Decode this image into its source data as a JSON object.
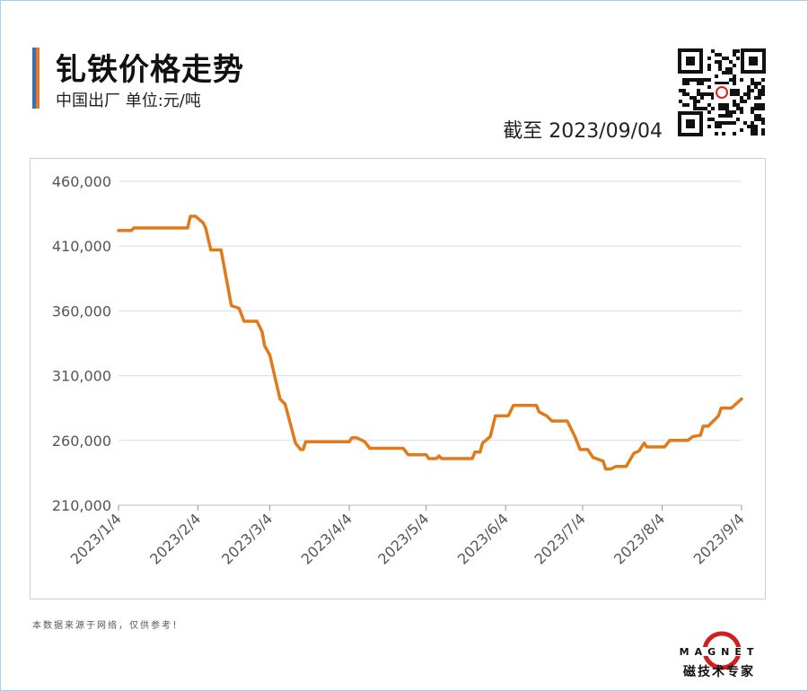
{
  "header": {
    "title": "钆铁价格走势",
    "subtitle": "中国出厂  单位:元/吨",
    "as_of": "截至 2023/09/04"
  },
  "footer": {
    "note": "本数据来源于网络，仅供参考！",
    "brand": "MAGNET",
    "brand_tagline": "磁技术专家"
  },
  "colors": {
    "line": "#e07a1a",
    "grid": "#dcdcdc",
    "accent_blue": "#3a6fb0",
    "accent_orange": "#e07a2e"
  },
  "chart_data": {
    "type": "line",
    "title": "钆铁价格走势",
    "ylabel": "",
    "xlabel": "",
    "ylim": [
      210000,
      460000
    ],
    "yticks": [
      210000,
      260000,
      310000,
      360000,
      410000,
      460000
    ],
    "ytick_labels": [
      "210,000",
      "260,000",
      "310,000",
      "360,000",
      "410,000",
      "460,000"
    ],
    "xlim": [
      "2023-01-04",
      "2023-09-04"
    ],
    "xticks": [
      "2023-01-04",
      "2023-02-04",
      "2023-03-04",
      "2023-04-04",
      "2023-05-04",
      "2023-06-04",
      "2023-07-04",
      "2023-08-04",
      "2023-09-04"
    ],
    "xtick_labels": [
      "2023/1/4",
      "2023/2/4",
      "2023/3/4",
      "2023/4/4",
      "2023/5/4",
      "2023/6/4",
      "2023/7/4",
      "2023/8/4",
      "2023/9/4"
    ],
    "grid": true,
    "legend": "none",
    "series": [
      {
        "points": [
          [
            "2023-01-04",
            422000
          ],
          [
            "2023-01-09",
            422000
          ],
          [
            "2023-01-10",
            424000
          ],
          [
            "2023-01-31",
            424000
          ],
          [
            "2023-02-01",
            433000
          ],
          [
            "2023-02-03",
            433000
          ],
          [
            "2023-02-06",
            428000
          ],
          [
            "2023-02-07",
            424000
          ],
          [
            "2023-02-09",
            407000
          ],
          [
            "2023-02-13",
            407000
          ],
          [
            "2023-02-17",
            364000
          ],
          [
            "2023-02-20",
            362000
          ],
          [
            "2023-02-22",
            352000
          ],
          [
            "2023-02-27",
            352000
          ],
          [
            "2023-03-01",
            344000
          ],
          [
            "2023-03-02",
            333000
          ],
          [
            "2023-03-04",
            326000
          ],
          [
            "2023-03-08",
            292000
          ],
          [
            "2023-03-10",
            288000
          ],
          [
            "2023-03-14",
            258000
          ],
          [
            "2023-03-16",
            253000
          ],
          [
            "2023-03-17",
            253000
          ],
          [
            "2023-03-18",
            259000
          ],
          [
            "2023-04-04",
            259000
          ],
          [
            "2023-04-05",
            262000
          ],
          [
            "2023-04-07",
            262000
          ],
          [
            "2023-04-10",
            259000
          ],
          [
            "2023-04-12",
            254000
          ],
          [
            "2023-04-25",
            254000
          ],
          [
            "2023-04-27",
            249000
          ],
          [
            "2023-05-04",
            249000
          ],
          [
            "2023-05-05",
            246000
          ],
          [
            "2023-05-08",
            246000
          ],
          [
            "2023-05-09",
            248000
          ],
          [
            "2023-05-10",
            246000
          ],
          [
            "2023-05-22",
            246000
          ],
          [
            "2023-05-23",
            251000
          ],
          [
            "2023-05-25",
            251000
          ],
          [
            "2023-05-26",
            258000
          ],
          [
            "2023-05-29",
            263000
          ],
          [
            "2023-05-31",
            279000
          ],
          [
            "2023-06-05",
            279000
          ],
          [
            "2023-06-07",
            287000
          ],
          [
            "2023-06-16",
            287000
          ],
          [
            "2023-06-17",
            282000
          ],
          [
            "2023-06-20",
            279000
          ],
          [
            "2023-06-22",
            275000
          ],
          [
            "2023-06-28",
            275000
          ],
          [
            "2023-07-01",
            263000
          ],
          [
            "2023-07-03",
            253000
          ],
          [
            "2023-07-06",
            253000
          ],
          [
            "2023-07-08",
            247000
          ],
          [
            "2023-07-12",
            244000
          ],
          [
            "2023-07-13",
            238000
          ],
          [
            "2023-07-15",
            238000
          ],
          [
            "2023-07-17",
            240000
          ],
          [
            "2023-07-21",
            240000
          ],
          [
            "2023-07-24",
            250000
          ],
          [
            "2023-07-26",
            252000
          ],
          [
            "2023-07-28",
            258000
          ],
          [
            "2023-07-29",
            255000
          ],
          [
            "2023-08-05",
            255000
          ],
          [
            "2023-08-07",
            260000
          ],
          [
            "2023-08-14",
            260000
          ],
          [
            "2023-08-16",
            263000
          ],
          [
            "2023-08-19",
            264000
          ],
          [
            "2023-08-20",
            271000
          ],
          [
            "2023-08-22",
            271000
          ],
          [
            "2023-08-26",
            279000
          ],
          [
            "2023-08-27",
            285000
          ],
          [
            "2023-08-31",
            285000
          ],
          [
            "2023-09-04",
            292000
          ]
        ]
      }
    ]
  }
}
